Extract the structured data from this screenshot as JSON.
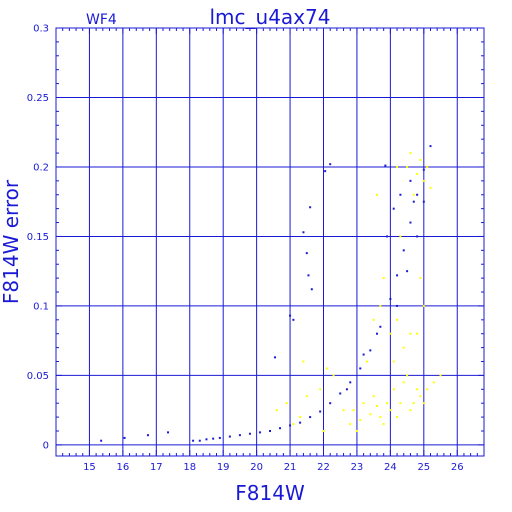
{
  "chart_data": {
    "type": "scatter",
    "title": "lmc_u4ax74",
    "subtitle": "WF4",
    "xlabel": "F814W",
    "ylabel": "F814W error",
    "xlim": [
      14.0,
      26.8
    ],
    "ylim": [
      -0.008,
      0.3
    ],
    "xticks": [
      15,
      16,
      17,
      18,
      19,
      20,
      21,
      22,
      23,
      24,
      25,
      26
    ],
    "yticks": [
      0,
      0.05,
      0.1,
      0.15,
      0.2,
      0.25,
      0.3
    ],
    "ytick_labels": [
      "0",
      "0.05",
      "0.1",
      "0.15",
      "0.2",
      "0.25",
      "0.3"
    ],
    "grid": true,
    "colors": {
      "axis": "#1a1ad6",
      "blue_series": "#1a1ad6",
      "yellow_series": "#ffff00"
    },
    "series": [
      {
        "color": "blue",
        "points": [
          [
            15.35,
            0.003
          ],
          [
            16.05,
            0.005
          ],
          [
            16.75,
            0.007
          ],
          [
            17.35,
            0.009
          ],
          [
            18.1,
            0.003
          ],
          [
            18.3,
            0.003
          ],
          [
            18.5,
            0.004
          ],
          [
            18.7,
            0.0045
          ],
          [
            18.9,
            0.005
          ],
          [
            19.2,
            0.006
          ],
          [
            19.5,
            0.007
          ],
          [
            19.8,
            0.008
          ],
          [
            20.1,
            0.009
          ],
          [
            20.4,
            0.01
          ],
          [
            20.7,
            0.012
          ],
          [
            21.0,
            0.014
          ],
          [
            21.3,
            0.016
          ],
          [
            21.6,
            0.02
          ],
          [
            21.9,
            0.024
          ],
          [
            22.2,
            0.03
          ],
          [
            22.5,
            0.037
          ],
          [
            22.8,
            0.045
          ],
          [
            23.1,
            0.055
          ],
          [
            23.4,
            0.068
          ],
          [
            23.7,
            0.085
          ],
          [
            24.0,
            0.105
          ],
          [
            24.2,
            0.122
          ],
          [
            24.4,
            0.14
          ],
          [
            24.6,
            0.16
          ],
          [
            24.8,
            0.18
          ],
          [
            25.0,
            0.198
          ],
          [
            25.2,
            0.215
          ],
          [
            20.55,
            0.063
          ],
          [
            21.0,
            0.093
          ],
          [
            21.1,
            0.09
          ],
          [
            21.4,
            0.153
          ],
          [
            21.5,
            0.138
          ],
          [
            21.6,
            0.171
          ],
          [
            21.55,
            0.122
          ],
          [
            21.65,
            0.112
          ],
          [
            22.05,
            0.197
          ],
          [
            22.2,
            0.202
          ],
          [
            23.85,
            0.201
          ],
          [
            22.7,
            0.04
          ],
          [
            23.2,
            0.065
          ],
          [
            23.9,
            0.15
          ],
          [
            24.1,
            0.17
          ],
          [
            24.3,
            0.18
          ],
          [
            24.6,
            0.19
          ],
          [
            24.2,
            0.1
          ],
          [
            24.5,
            0.125
          ],
          [
            24.7,
            0.175
          ],
          [
            25.0,
            0.175
          ],
          [
            23.6,
            0.08
          ],
          [
            24.8,
            0.15
          ]
        ]
      },
      {
        "color": "yellow",
        "points": [
          [
            20.6,
            0.025
          ],
          [
            20.9,
            0.03
          ],
          [
            21.3,
            0.02
          ],
          [
            21.5,
            0.035
          ],
          [
            21.9,
            0.04
          ],
          [
            21.4,
            0.06
          ],
          [
            22.1,
            0.055
          ],
          [
            22.3,
            0.05
          ],
          [
            22.7,
            0.04
          ],
          [
            22.9,
            0.025
          ],
          [
            23.1,
            0.018
          ],
          [
            23.2,
            0.03
          ],
          [
            23.4,
            0.022
          ],
          [
            23.5,
            0.035
          ],
          [
            23.6,
            0.028
          ],
          [
            23.7,
            0.02
          ],
          [
            23.8,
            0.015
          ],
          [
            23.9,
            0.03
          ],
          [
            24.0,
            0.025
          ],
          [
            24.1,
            0.04
          ],
          [
            24.2,
            0.02
          ],
          [
            24.3,
            0.03
          ],
          [
            24.4,
            0.045
          ],
          [
            24.5,
            0.05
          ],
          [
            24.6,
            0.025
          ],
          [
            24.7,
            0.03
          ],
          [
            24.8,
            0.04
          ],
          [
            24.9,
            0.035
          ],
          [
            25.0,
            0.03
          ],
          [
            25.1,
            0.04
          ],
          [
            25.3,
            0.045
          ],
          [
            25.5,
            0.05
          ],
          [
            22.6,
            0.025
          ],
          [
            22.8,
            0.015
          ],
          [
            23.0,
            0.01
          ],
          [
            23.3,
            0.06
          ],
          [
            23.5,
            0.09
          ],
          [
            23.7,
            0.1
          ],
          [
            23.8,
            0.12
          ],
          [
            24.0,
            0.08
          ],
          [
            23.6,
            0.18
          ],
          [
            24.1,
            0.06
          ],
          [
            24.2,
            0.09
          ],
          [
            24.5,
            0.2
          ],
          [
            24.6,
            0.21
          ],
          [
            24.8,
            0.195
          ],
          [
            24.9,
            0.205
          ],
          [
            25.0,
            0.19
          ],
          [
            25.1,
            0.2
          ],
          [
            24.7,
            0.18
          ],
          [
            25.2,
            0.185
          ],
          [
            24.4,
            0.07
          ],
          [
            24.6,
            0.08
          ],
          [
            24.3,
            0.15
          ],
          [
            24.9,
            0.12
          ],
          [
            25.0,
            0.1
          ],
          [
            22.0,
            0.01
          ],
          [
            21.1,
            0.015
          ],
          [
            24.2,
            0.2
          ],
          [
            24.8,
            0.08
          ]
        ]
      }
    ]
  }
}
